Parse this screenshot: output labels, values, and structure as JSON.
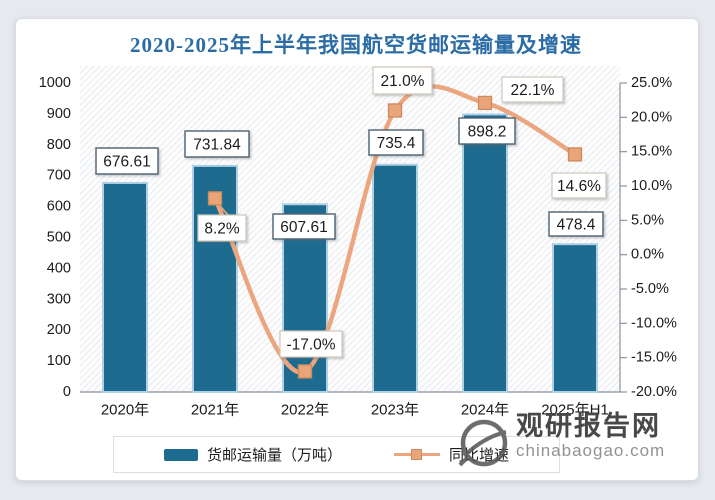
{
  "title": "2020-2025年上半年我国航空货邮运输量及增速",
  "chart_data": {
    "type": "combo_bar_line",
    "title": "2020-2025年上半年我国航空货邮运输量及增速",
    "categories": [
      "2020年",
      "2021年",
      "2022年",
      "2023年",
      "2024年",
      "2025年H1"
    ],
    "series": [
      {
        "name": "货邮运输量（万吨）",
        "type": "bar",
        "axis": "left",
        "color": "#1e6b90",
        "values": [
          676.61,
          731.84,
          607.61,
          735.4,
          898.2,
          478.4
        ],
        "labels": [
          "676.61",
          "731.84",
          "607.61",
          "735.4",
          "898.2",
          "478.4"
        ]
      },
      {
        "name": "同比增速",
        "type": "line",
        "axis": "right",
        "color": "#eca67f",
        "values": [
          null,
          8.2,
          -17.0,
          21.0,
          22.1,
          14.6
        ],
        "labels": [
          null,
          "8.2%",
          "-17.0%",
          "21.0%",
          "22.1%",
          "14.6%"
        ]
      }
    ],
    "left_axis": {
      "min": 0,
      "max": 1000,
      "step": 100,
      "tick_labels": [
        "1000",
        "900",
        "800",
        "700",
        "600",
        "500",
        "400",
        "300",
        "200",
        "100",
        "0"
      ]
    },
    "right_axis": {
      "min": -20,
      "max": 25,
      "step": 5,
      "tick_labels": [
        "25.0%",
        "20.0%",
        "15.0%",
        "10.0%",
        "5.0%",
        "0.0%",
        "-5.0%",
        "-10.0%",
        "-15.0%",
        "-20.0%"
      ]
    },
    "legend_position": "bottom",
    "grid": false
  },
  "colors": {
    "bar": "#1e6b90",
    "bar_edge": "#aed2e4",
    "line": "#eca67f",
    "marker": "#e9a47a",
    "marker_edge": "#cd8a5c",
    "title": "#2c6ca5",
    "axis_text": "#1c1c1c",
    "axis_line": "#9aa2aa"
  },
  "watermark": {
    "name": "观研报告网",
    "url": "chinabaogao.com"
  }
}
